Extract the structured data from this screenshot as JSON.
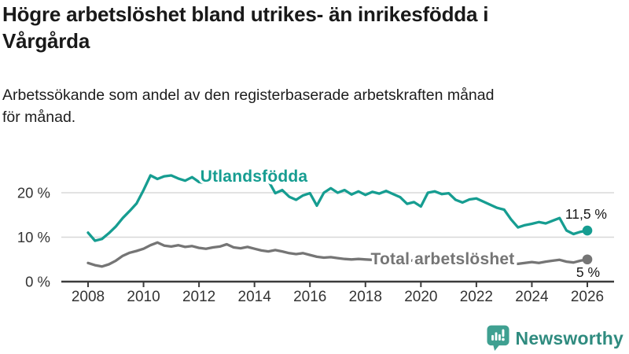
{
  "page": {
    "title": "Högre arbetslöshet bland utrikes- än inrikesfödda i Vårgårda",
    "title_lines": [
      "Högre arbetslöshet bland utrikes- än inrikesfödda i",
      "Vårgårda"
    ],
    "subtitle": "Arbetssökande som andel av den registerbaserade arbetskraften månad för månad.",
    "subtitle_lines": [
      "Arbetssökande som andel av den registerbaserade arbetskraften månad",
      "för månad."
    ]
  },
  "branding": {
    "name": "Newsworthy",
    "icon": "newsworthy-chart-bubble-icon",
    "icon_color": "#3fa091",
    "text_color": "#2f8b7f"
  },
  "chart_data": {
    "type": "line",
    "unit": "%",
    "grid": true,
    "x_start": 2008,
    "x_step": 0.25,
    "xlim": [
      2008,
      2026
    ],
    "ylim": [
      0,
      27
    ],
    "x_ticks": [
      "2008",
      "2010",
      "2012",
      "2014",
      "2016",
      "2018",
      "2020",
      "2022",
      "2024",
      "2026"
    ],
    "x_tick_years": [
      2008,
      2010,
      2012,
      2014,
      2016,
      2018,
      2020,
      2022,
      2024,
      2026
    ],
    "y_ticks": [
      {
        "value": 0,
        "label": "0 %"
      },
      {
        "value": 10,
        "label": "10 %"
      },
      {
        "value": 20,
        "label": "20 %"
      }
    ],
    "grid_color": "#d8d8d8",
    "axis_color": "#3c3c3c",
    "series": [
      {
        "name": "Utlandsfödda",
        "color": "#169d91",
        "end_label": "11,5 %",
        "end_value": 11.5,
        "values": [
          11.0,
          9.2,
          9.6,
          10.9,
          12.4,
          14.3,
          15.9,
          17.6,
          20.6,
          23.9,
          23.1,
          23.7,
          23.9,
          23.2,
          22.7,
          23.5,
          22.4,
          22.2,
          23.1,
          22.6,
          23.3,
          22.5,
          23.1,
          23.7,
          23.2,
          23.5,
          22.7,
          19.9,
          20.6,
          19.1,
          18.4,
          19.4,
          19.9,
          17.1,
          20.0,
          21.0,
          20.0,
          20.6,
          19.6,
          20.3,
          19.5,
          20.2,
          19.8,
          20.4,
          19.7,
          19.0,
          17.5,
          17.9,
          16.9,
          20.0,
          20.3,
          19.7,
          19.9,
          18.4,
          17.8,
          18.5,
          18.7,
          18.0,
          17.3,
          16.6,
          16.2,
          14.0,
          12.2,
          12.7,
          13.0,
          13.4,
          13.1,
          13.7,
          14.3,
          11.5,
          10.7,
          11.2,
          11.5
        ]
      },
      {
        "name": "Total arbetslöshet",
        "color": "#757575",
        "end_label": "5 %",
        "end_value": 5,
        "values": [
          4.2,
          3.7,
          3.4,
          3.9,
          4.7,
          5.8,
          6.5,
          6.9,
          7.4,
          8.2,
          8.8,
          8.1,
          7.9,
          8.2,
          7.8,
          8.0,
          7.6,
          7.4,
          7.7,
          7.9,
          8.4,
          7.7,
          7.5,
          7.8,
          7.4,
          7.0,
          6.8,
          7.1,
          6.8,
          6.4,
          6.2,
          6.4,
          6.0,
          5.6,
          5.4,
          5.5,
          5.3,
          5.1,
          5.0,
          5.1,
          5.0,
          4.9,
          4.8,
          4.9,
          4.8,
          4.7,
          4.6,
          4.8,
          4.9,
          5.4,
          5.2,
          5.1,
          5.0,
          4.8,
          4.7,
          4.8,
          4.6,
          4.5,
          4.4,
          4.5,
          4.3,
          4.1,
          4.0,
          4.2,
          4.4,
          4.2,
          4.5,
          4.7,
          4.9,
          4.5,
          4.3,
          4.7,
          5.0
        ]
      }
    ]
  }
}
